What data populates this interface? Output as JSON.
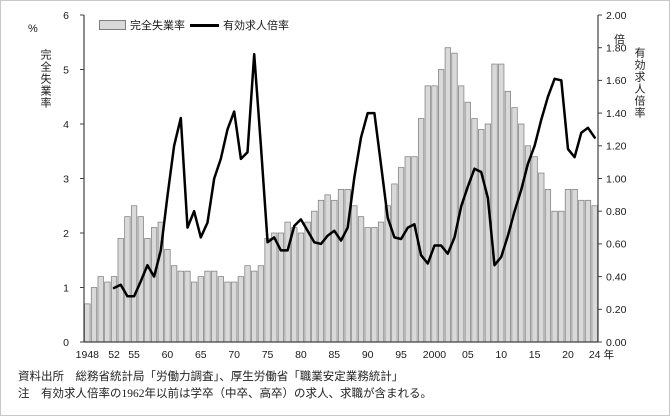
{
  "figure": {
    "legend": {
      "bar_label": "完全失業率",
      "line_label": "有効求人倍率"
    },
    "left_axis": {
      "unit": "%",
      "title": "完全失業率",
      "ticks": [
        0,
        1,
        2,
        3,
        4,
        5,
        6
      ]
    },
    "right_axis": {
      "unit": "倍",
      "title": "有効求人倍率",
      "ticks": [
        "0.00",
        "0.20",
        "0.40",
        "0.60",
        "0.80",
        "1.00",
        "1.20",
        "1.40",
        "1.60",
        "1.80",
        "2.00"
      ]
    },
    "x_axis": {
      "suffix": "年",
      "labels": [
        {
          "year": 1948,
          "text": "1948"
        },
        {
          "year": 1952,
          "text": "52"
        },
        {
          "year": 1955,
          "text": "55"
        },
        {
          "year": 1960,
          "text": "60"
        },
        {
          "year": 1965,
          "text": "65"
        },
        {
          "year": 1970,
          "text": "70"
        },
        {
          "year": 1975,
          "text": "75"
        },
        {
          "year": 1980,
          "text": "80"
        },
        {
          "year": 1985,
          "text": "85"
        },
        {
          "year": 1990,
          "text": "90"
        },
        {
          "year": 1995,
          "text": "95"
        },
        {
          "year": 2000,
          "text": "2000"
        },
        {
          "year": 2005,
          "text": "05"
        },
        {
          "year": 2010,
          "text": "10"
        },
        {
          "year": 2015,
          "text": "15"
        },
        {
          "year": 2020,
          "text": "20"
        },
        {
          "year": 2024,
          "text": "24"
        }
      ]
    },
    "source": "資料出所　総務省統計局「労働力調査」、厚生労働省「職業安定業務統計」",
    "note": "注　有効求人倍率の1962年以前は学卒（中卒、高卒）の求人、求職が含まれる。"
  },
  "colors": {
    "bar_fill": "#d9d9d9",
    "bar_stroke": "#808080",
    "line": "#000000",
    "axis": "#404040",
    "tick_text": "#1a1a1a"
  },
  "chart_data": {
    "type": "bar+line combo",
    "x_start": 1948,
    "x_end": 2024,
    "left_ylim": [
      0,
      6
    ],
    "right_ylim": [
      0,
      2
    ],
    "grid": false,
    "legend_position": "top",
    "series": [
      {
        "name": "完全失業率",
        "type": "bar",
        "axis": "left",
        "unit": "%",
        "start_year": 1948,
        "values": [
          0.7,
          1.0,
          1.2,
          1.1,
          1.2,
          1.9,
          2.3,
          2.5,
          2.3,
          1.9,
          2.1,
          2.2,
          1.7,
          1.4,
          1.3,
          1.3,
          1.1,
          1.2,
          1.3,
          1.3,
          1.2,
          1.1,
          1.1,
          1.2,
          1.4,
          1.3,
          1.4,
          1.9,
          2.0,
          2.0,
          2.2,
          2.1,
          2.0,
          2.2,
          2.4,
          2.6,
          2.7,
          2.6,
          2.8,
          2.8,
          2.5,
          2.3,
          2.1,
          2.1,
          2.2,
          2.5,
          2.9,
          3.2,
          3.4,
          3.4,
          4.1,
          4.7,
          4.7,
          5.0,
          5.4,
          5.3,
          4.7,
          4.4,
          4.1,
          3.9,
          4.0,
          5.1,
          5.1,
          4.6,
          4.3,
          4.0,
          3.6,
          3.4,
          3.1,
          2.8,
          2.4,
          2.4,
          2.8,
          2.8,
          2.6,
          2.6,
          2.5
        ]
      },
      {
        "name": "有効求人倍率",
        "type": "line",
        "axis": "right",
        "unit": "倍",
        "start_year": 1952,
        "values": [
          0.33,
          0.35,
          0.28,
          0.28,
          0.37,
          0.47,
          0.4,
          0.56,
          0.89,
          1.2,
          1.37,
          0.7,
          0.8,
          0.64,
          0.73,
          1.0,
          1.12,
          1.3,
          1.41,
          1.12,
          1.16,
          1.76,
          1.2,
          0.61,
          0.64,
          0.56,
          0.56,
          0.71,
          0.75,
          0.68,
          0.61,
          0.6,
          0.65,
          0.68,
          0.62,
          0.7,
          1.01,
          1.25,
          1.4,
          1.4,
          1.08,
          0.76,
          0.64,
          0.63,
          0.7,
          0.72,
          0.53,
          0.48,
          0.59,
          0.59,
          0.54,
          0.64,
          0.83,
          0.95,
          1.06,
          1.04,
          0.88,
          0.47,
          0.52,
          0.65,
          0.8,
          0.93,
          1.09,
          1.2,
          1.36,
          1.5,
          1.61,
          1.6,
          1.18,
          1.13,
          1.28,
          1.31,
          1.25
        ]
      }
    ]
  }
}
